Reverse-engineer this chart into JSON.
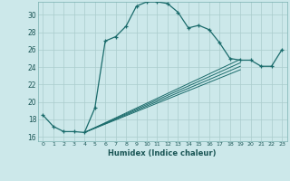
{
  "xlabel": "Humidex (Indice chaleur)",
  "background_color": "#cce8ea",
  "grid_color": "#b0d4d8",
  "line_color": "#1a6b6b",
  "xlim": [
    -0.5,
    23.5
  ],
  "ylim": [
    15.5,
    31.5
  ],
  "xticks": [
    0,
    1,
    2,
    3,
    4,
    5,
    6,
    7,
    8,
    9,
    10,
    11,
    12,
    13,
    14,
    15,
    16,
    17,
    18,
    19,
    20,
    21,
    22,
    23
  ],
  "yticks": [
    16,
    18,
    20,
    22,
    24,
    26,
    28,
    30
  ],
  "main_line_x": [
    0,
    1,
    2,
    3,
    4,
    5,
    6,
    7,
    8,
    9,
    10,
    11,
    12,
    13,
    14,
    15,
    16,
    17,
    18,
    19,
    20,
    21,
    22,
    23
  ],
  "main_line_y": [
    18.5,
    17.2,
    16.6,
    16.6,
    16.5,
    19.3,
    27.0,
    27.5,
    28.7,
    31.0,
    31.5,
    31.5,
    31.3,
    30.3,
    28.5,
    28.8,
    28.3,
    26.8,
    25.0,
    24.8,
    24.8,
    24.1,
    24.1,
    26.0
  ],
  "diag_lines": [
    {
      "x": [
        4,
        19
      ],
      "y": [
        16.5,
        24.9
      ]
    },
    {
      "x": [
        4,
        19
      ],
      "y": [
        16.5,
        24.5
      ]
    },
    {
      "x": [
        4,
        19
      ],
      "y": [
        16.5,
        24.1
      ]
    },
    {
      "x": [
        4,
        19
      ],
      "y": [
        16.5,
        23.7
      ]
    }
  ]
}
